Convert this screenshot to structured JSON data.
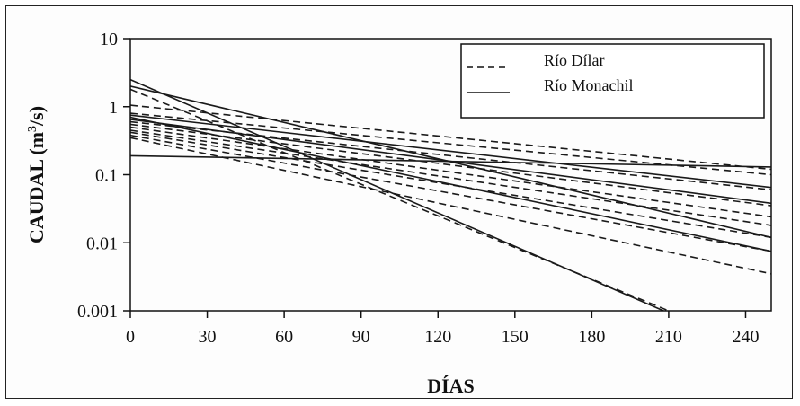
{
  "chart_data": {
    "type": "line",
    "xlabel": "DÍAS",
    "ylabel": "CAUDAL (m³/s)",
    "ylabel_parts": {
      "main": "CAUDAL (m",
      "sup": "3",
      "end": "/s)"
    },
    "yscale": "log",
    "xlim": [
      0,
      250
    ],
    "ylim": [
      0.001,
      10
    ],
    "x_ticks": [
      "0",
      "30",
      "60",
      "90",
      "120",
      "150",
      "180",
      "210",
      "240"
    ],
    "x_tick_values": [
      0,
      30,
      60,
      90,
      120,
      150,
      180,
      210,
      240
    ],
    "y_ticks": [
      "0.001",
      "0.01",
      "0.1",
      "1",
      "10"
    ],
    "y_tick_values": [
      0.001,
      0.01,
      0.1,
      1,
      10
    ],
    "legend_position": "top-right",
    "legend": [
      {
        "label": "Río Dílar",
        "style": "dashed"
      },
      {
        "label": "Río Monachil",
        "style": "solid"
      }
    ],
    "series": [
      {
        "group": "Río Dílar",
        "style": "dashed",
        "x": [
          0,
          250
        ],
        "y": [
          1.05,
          0.12
        ]
      },
      {
        "group": "Río Dílar",
        "style": "dashed",
        "x": [
          0,
          250
        ],
        "y": [
          0.8,
          0.1
        ]
      },
      {
        "group": "Río Dílar",
        "style": "dashed",
        "x": [
          0,
          250
        ],
        "y": [
          0.6,
          0.06
        ]
      },
      {
        "group": "Río Dílar",
        "style": "dashed",
        "x": [
          0,
          250
        ],
        "y": [
          0.55,
          0.035
        ]
      },
      {
        "group": "Río Dílar",
        "style": "dashed",
        "x": [
          0,
          250
        ],
        "y": [
          0.5,
          0.024
        ]
      },
      {
        "group": "Río Dílar",
        "style": "dashed",
        "x": [
          0,
          250
        ],
        "y": [
          0.45,
          0.018
        ]
      },
      {
        "group": "Río Dílar",
        "style": "dashed",
        "x": [
          0,
          250
        ],
        "y": [
          0.42,
          0.012
        ]
      },
      {
        "group": "Río Dílar",
        "style": "dashed",
        "x": [
          0,
          250
        ],
        "y": [
          0.38,
          0.0075
        ]
      },
      {
        "group": "Río Dílar",
        "style": "dashed",
        "x": [
          0,
          250
        ],
        "y": [
          0.35,
          0.0035
        ]
      },
      {
        "group": "Río Dílar",
        "style": "dashed",
        "x": [
          0,
          210
        ],
        "y": [
          1.8,
          0.001
        ]
      },
      {
        "group": "Río Monachil",
        "style": "solid",
        "x": [
          0,
          250
        ],
        "y": [
          0.19,
          0.13
        ]
      },
      {
        "group": "Río Monachil",
        "style": "solid",
        "x": [
          0,
          250
        ],
        "y": [
          0.75,
          0.065
        ]
      },
      {
        "group": "Río Monachil",
        "style": "solid",
        "x": [
          0,
          250
        ],
        "y": [
          0.65,
          0.038
        ]
      },
      {
        "group": "Río Monachil",
        "style": "solid",
        "x": [
          0,
          250
        ],
        "y": [
          2.0,
          0.012
        ]
      },
      {
        "group": "Río Monachil",
        "style": "solid",
        "x": [
          0,
          250
        ],
        "y": [
          0.7,
          0.0075
        ]
      },
      {
        "group": "Río Monachil",
        "style": "solid",
        "x": [
          0,
          208
        ],
        "y": [
          2.5,
          0.001
        ]
      }
    ]
  }
}
